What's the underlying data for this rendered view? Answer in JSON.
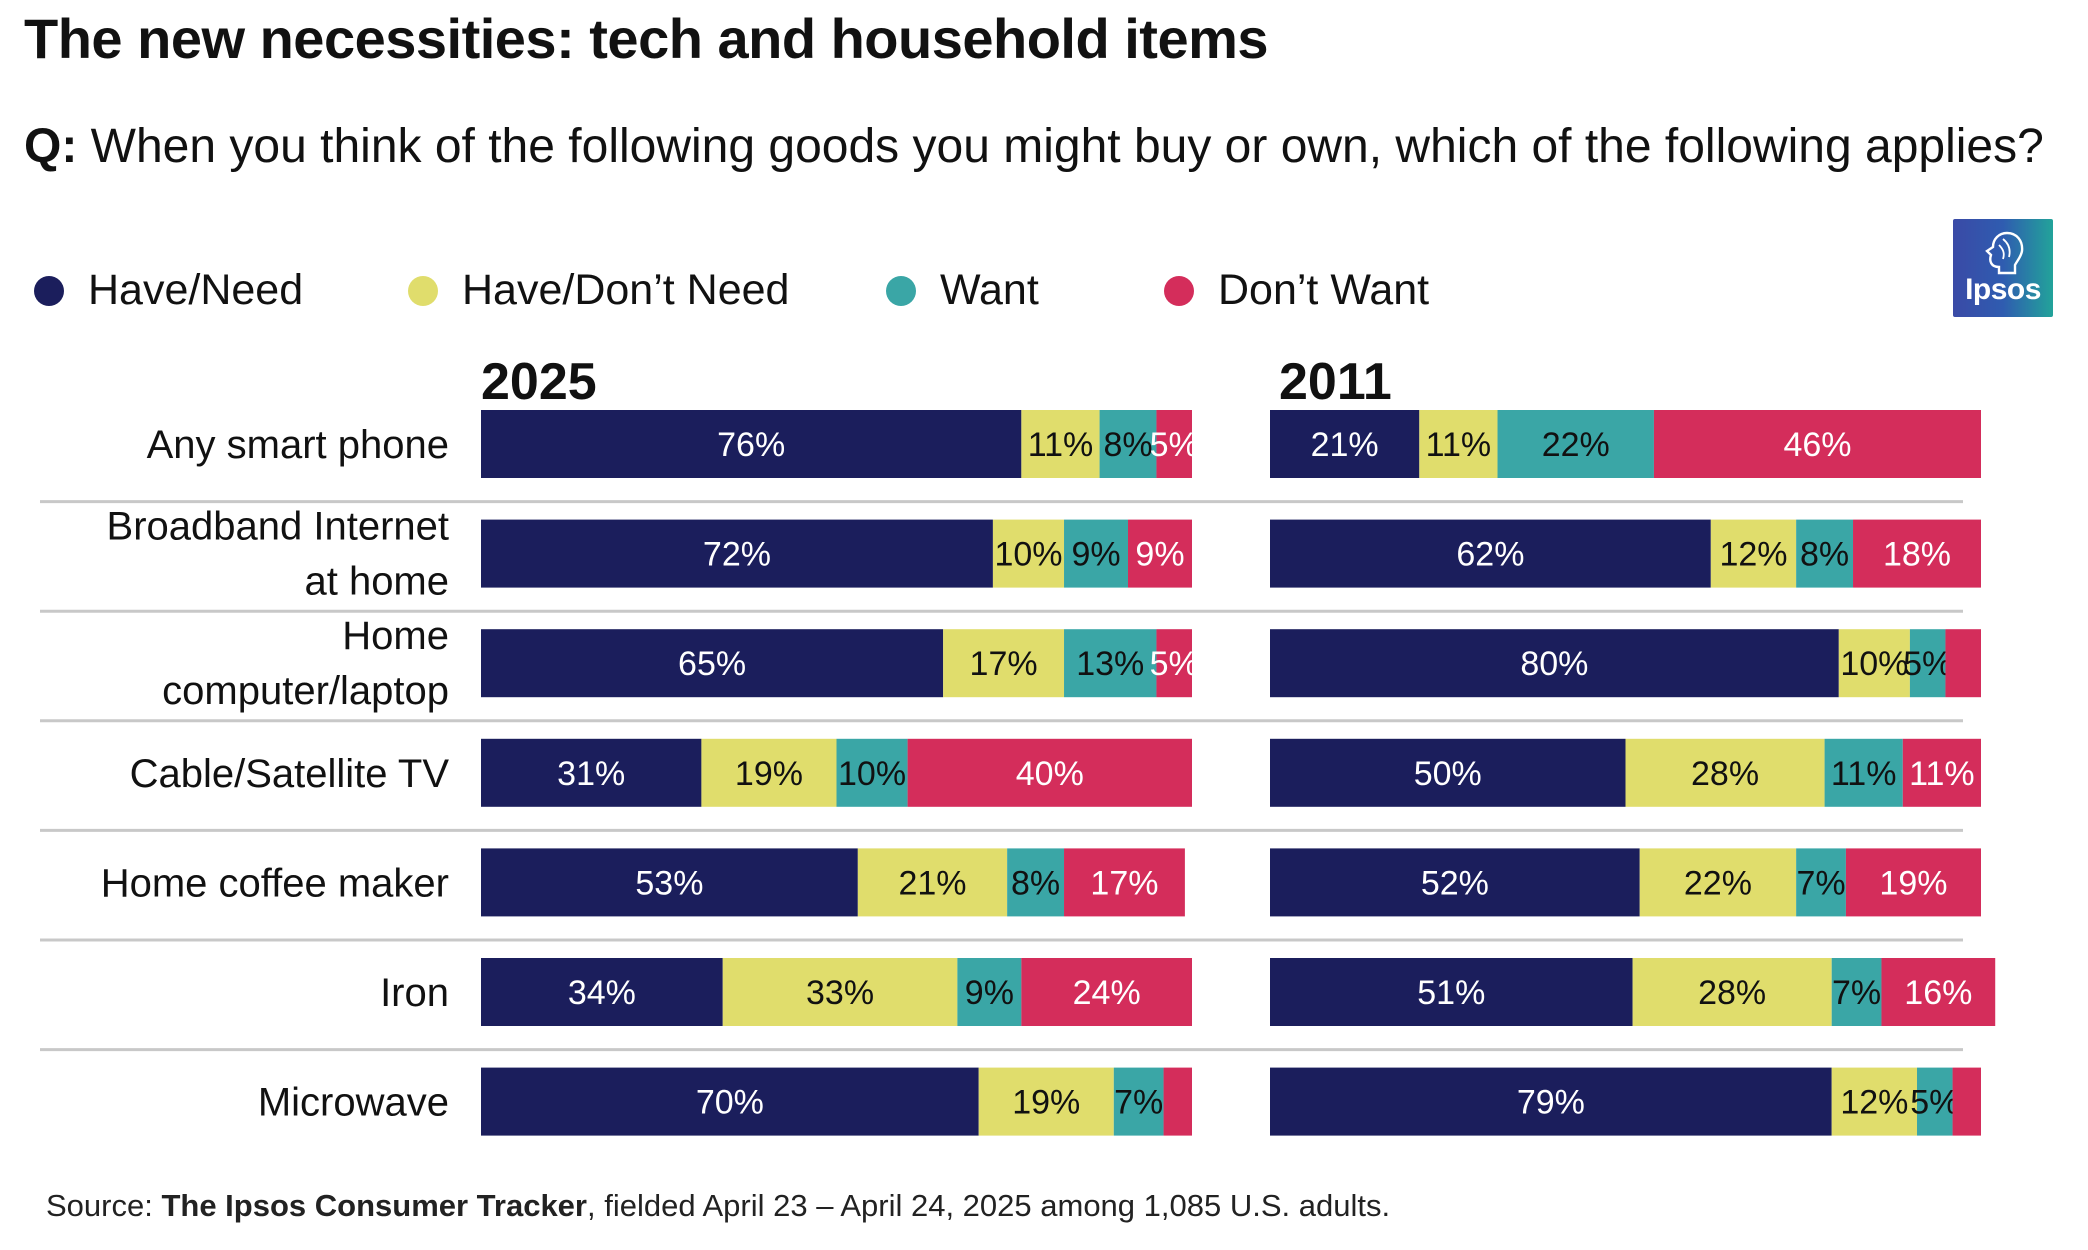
{
  "title": "The new necessities: tech and household items",
  "question": {
    "label": "Q:",
    "text": "When you think of the following goods you might buy or own, which of the following applies?"
  },
  "logo": {
    "text": "Ipsos",
    "icon": "ipsos-head-icon"
  },
  "source": {
    "prefix": "Source: ",
    "name": "The Ipsos Consumer Tracker",
    "suffix": ", fielded April 23 – April 24, 2025 among 1,085 U.S. adults."
  },
  "colors": {
    "have_need": "#1b1e5c",
    "have_dont_need": "#e0dd6c",
    "want": "#3aa6a6",
    "dont_want": "#d42d5b",
    "divider": "#c8c8c8"
  },
  "chart_data": {
    "type": "bar",
    "orientation": "horizontal",
    "stacked": true,
    "value_format": "percent",
    "legend": [
      {
        "key": "have_need",
        "label": "Have/Need"
      },
      {
        "key": "have_dont_need",
        "label": "Have/Don’t Need"
      },
      {
        "key": "want",
        "label": "Want"
      },
      {
        "key": "dont_want",
        "label": "Don’t Want"
      }
    ],
    "categories": [
      "Any smart phone",
      "Broadband Internet at home",
      "Home computer/laptop",
      "Cable/Satellite TV",
      "Home coffee maker",
      "Iron",
      "Microwave"
    ],
    "panels": [
      {
        "year": "2025",
        "series": [
          {
            "key": "have_need",
            "name": "Have/Need",
            "values": [
              76,
              72,
              65,
              31,
              53,
              34,
              70
            ]
          },
          {
            "key": "have_dont_need",
            "name": "Have/Don’t Need",
            "values": [
              11,
              10,
              17,
              19,
              21,
              33,
              19
            ]
          },
          {
            "key": "want",
            "name": "Want",
            "values": [
              8,
              9,
              13,
              10,
              8,
              9,
              7
            ]
          },
          {
            "key": "dont_want",
            "name": "Don’t Want",
            "values": [
              5,
              9,
              5,
              40,
              17,
              24,
              null
            ]
          }
        ]
      },
      {
        "year": "2011",
        "series": [
          {
            "key": "have_need",
            "name": "Have/Need",
            "values": [
              21,
              62,
              80,
              50,
              52,
              51,
              79
            ]
          },
          {
            "key": "have_dont_need",
            "name": "Have/Don’t Need",
            "values": [
              11,
              12,
              10,
              28,
              22,
              28,
              12
            ]
          },
          {
            "key": "want",
            "name": "Want",
            "values": [
              22,
              8,
              5,
              11,
              7,
              7,
              5
            ]
          },
          {
            "key": "dont_want",
            "name": "Don’t Want",
            "values": [
              46,
              18,
              null,
              11,
              19,
              16,
              null
            ]
          }
        ]
      }
    ]
  }
}
